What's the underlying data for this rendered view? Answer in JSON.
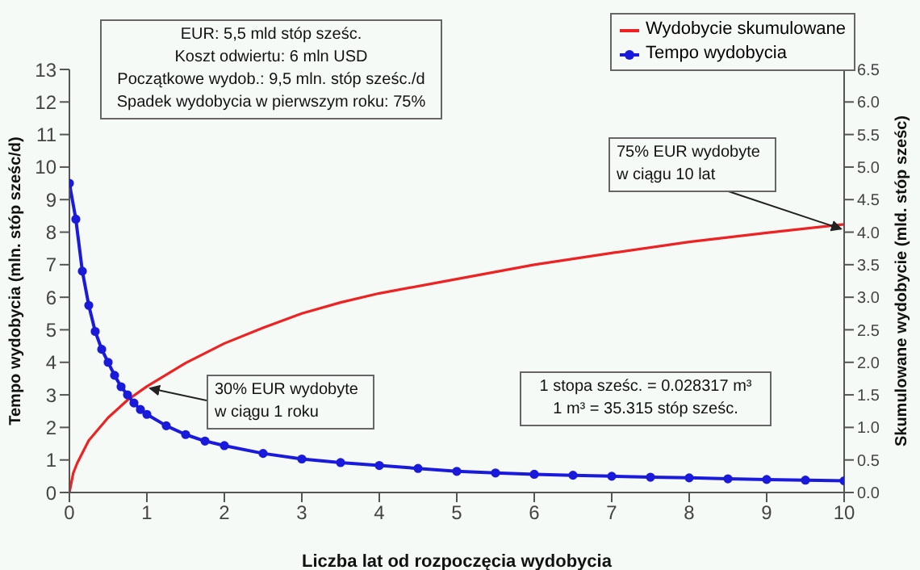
{
  "chart_data": {
    "type": "line",
    "xlabel": "Liczba lat od rozpoczęcia wydobycia",
    "ylabel": "Tempo wydobycia (mln. stóp sześc/d)",
    "y2label": "Skumulowane wydobycie (mld. stóp sześc)",
    "xlim": [
      0,
      10
    ],
    "xticks": [
      0,
      1,
      2,
      3,
      4,
      5,
      6,
      7,
      8,
      9,
      10
    ],
    "ylim": [
      0,
      13
    ],
    "yticks": [
      0,
      1,
      2,
      3,
      4,
      5,
      6,
      7,
      8,
      9,
      10,
      11,
      12,
      13
    ],
    "y2lim": [
      0,
      6.5
    ],
    "y2ticks": [
      {
        "value": 0,
        "label": "0.0"
      },
      0.5,
      {
        "value": 1,
        "label": "1.0"
      },
      1.5,
      {
        "value": 2,
        "label": "2.0"
      },
      2.5,
      {
        "value": 3,
        "label": "3.0"
      },
      3.5,
      {
        "value": 4,
        "label": "4.0"
      },
      4.5,
      {
        "value": 5,
        "label": "5.0"
      },
      5.5,
      {
        "value": 6,
        "label": "6.0"
      },
      6.5
    ],
    "grid": false,
    "legend": "top right",
    "series": [
      {
        "name": "Wydobycie skumulowane",
        "color": "#ee2222",
        "axis": "y2",
        "marker": "none",
        "x": [
          0,
          0.05,
          0.1,
          0.25,
          0.5,
          0.75,
          1,
          1.5,
          2,
          2.5,
          3,
          3.5,
          4,
          5,
          6,
          7,
          8,
          9,
          10
        ],
        "values": [
          0,
          0.3,
          0.45,
          0.8,
          1.15,
          1.42,
          1.63,
          1.99,
          2.29,
          2.53,
          2.75,
          2.92,
          3.06,
          3.28,
          3.5,
          3.68,
          3.85,
          3.99,
          4.12
        ]
      },
      {
        "name": "Tempo wydobycia",
        "color": "#1a1adc",
        "marker": "circle",
        "x": [
          0,
          0.083,
          0.167,
          0.25,
          0.333,
          0.417,
          0.5,
          0.583,
          0.667,
          0.75,
          0.833,
          0.917,
          1,
          1.25,
          1.5,
          1.75,
          2,
          2.5,
          3,
          3.5,
          4,
          4.5,
          5,
          5.5,
          6,
          6.5,
          7,
          7.5,
          8,
          8.5,
          9,
          9.5,
          10
        ],
        "values": [
          9.5,
          8.4,
          6.8,
          5.75,
          4.95,
          4.4,
          4.0,
          3.6,
          3.25,
          3.0,
          2.75,
          2.55,
          2.4,
          2.05,
          1.78,
          1.58,
          1.44,
          1.2,
          1.03,
          0.92,
          0.83,
          0.74,
          0.65,
          0.6,
          0.56,
          0.53,
          0.5,
          0.47,
          0.45,
          0.42,
          0.4,
          0.38,
          0.36
        ]
      }
    ],
    "annotations": [
      "EUR: 5,5 mld stóp sześc.\nKoszt odwiertu: 6 mln USD\nPoczątkowe wydob.: 9,5 mln. stóp sześc./d\nSpadek wydobycia w pierwszym roku: 75%",
      {
        "text": "30% EUR wydobyte\nw ciągu 1 roku",
        "x": 1,
        "y": 3.3
      },
      {
        "text": "75% EUR wydobyte\nw ciągu 10 lat",
        "x": 10,
        "y": 8.2
      },
      "1 stopa sześc. = 0.028317 m³\n1 m³ =  35.315 stóp sześc."
    ]
  }
}
